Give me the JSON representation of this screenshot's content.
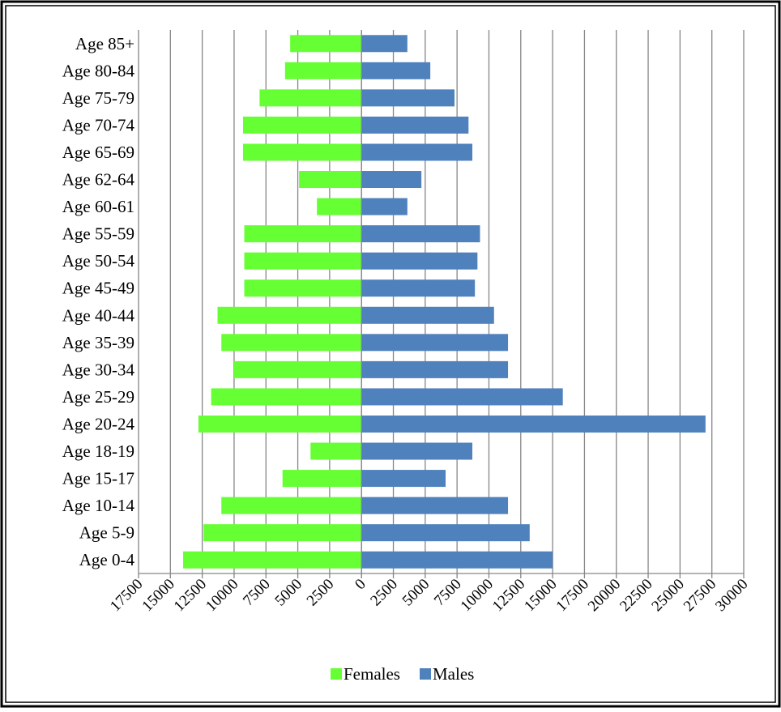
{
  "chart_data": {
    "type": "bar",
    "orientation": "horizontal",
    "title": "",
    "xlabel": "",
    "ylabel": "",
    "categories": [
      "Age 0-4",
      "Age 5-9",
      "Age 10-14",
      "Age 15-17",
      "Age 18-19",
      "Age 20-24",
      "Age 25-29",
      "Age 30-34",
      "Age 35-39",
      "Age 40-44",
      "Age 45-49",
      "Age 50-54",
      "Age 55-59",
      "Age 60-61",
      "Age 62-64",
      "Age 65-69",
      "Age 70-74",
      "Age 75-79",
      "Age 80-84",
      "Age 85+"
    ],
    "series": [
      {
        "name": "Females",
        "color": "#66ff33",
        "values": [
          14000,
          12400,
          11000,
          6200,
          4000,
          12800,
          11800,
          10000,
          11000,
          11300,
          9200,
          9200,
          9200,
          3500,
          4900,
          9300,
          9300,
          8000,
          6000,
          5600
        ]
      },
      {
        "name": "Males",
        "color": "#4f81bd",
        "values": [
          15000,
          13200,
          11500,
          6600,
          8700,
          27000,
          15800,
          11500,
          11500,
          10400,
          8900,
          9100,
          9300,
          3600,
          4700,
          8700,
          8400,
          7300,
          5400,
          3600
        ]
      }
    ],
    "xlim": [
      -17500,
      30000
    ],
    "x_ticks": [
      -17500,
      -15000,
      -12500,
      -10000,
      -7500,
      -5000,
      -2500,
      0,
      2500,
      5000,
      7500,
      10000,
      12500,
      15000,
      17500,
      20000,
      22500,
      25000,
      27500,
      30000
    ],
    "x_tick_labels": [
      "17500",
      "15000",
      "12500",
      "10000",
      "7500",
      "5000",
      "2500",
      "0",
      "2500",
      "5000",
      "7500",
      "10000",
      "12500",
      "15000",
      "17500",
      "20000",
      "22500",
      "25000",
      "27500",
      "30000"
    ],
    "grid": true,
    "legend_position": "bottom"
  }
}
